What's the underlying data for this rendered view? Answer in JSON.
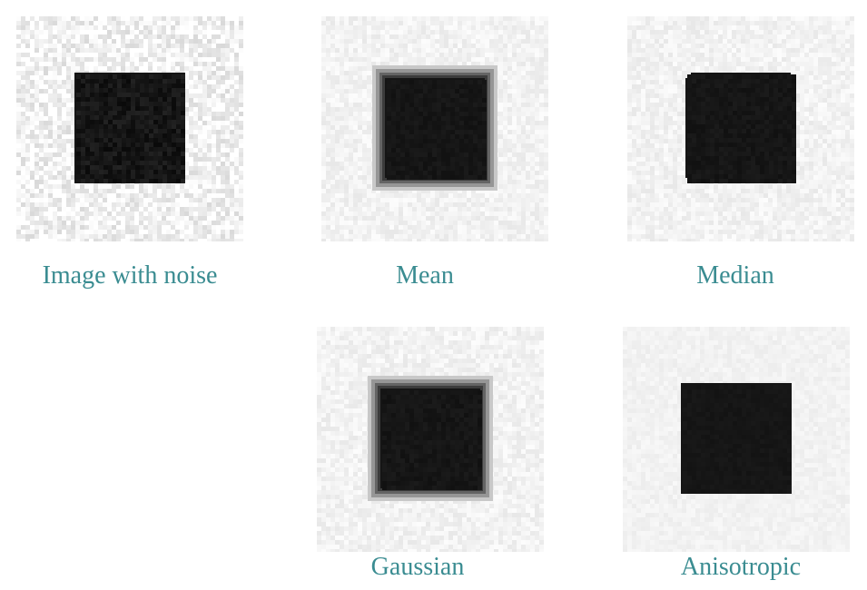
{
  "panels": [
    {
      "id": "noise",
      "caption": "Image with noise",
      "noise_level": 0.85,
      "square_style": "noisy-dark"
    },
    {
      "id": "mean",
      "caption": "Mean",
      "noise_level": 0.35,
      "square_style": "blurred-border"
    },
    {
      "id": "median",
      "caption": "Median",
      "noise_level": 0.35,
      "square_style": "clipped-corners"
    },
    {
      "id": "gaussian",
      "caption": "Gaussian",
      "noise_level": 0.35,
      "square_style": "blurred-border"
    },
    {
      "id": "anisotropic",
      "caption": "Anisotropic",
      "noise_level": 0.2,
      "square_style": "sharp"
    }
  ],
  "colors": {
    "caption": "#3a8c91",
    "background_light": "#f2f2f2",
    "square_dark": "#151515"
  }
}
